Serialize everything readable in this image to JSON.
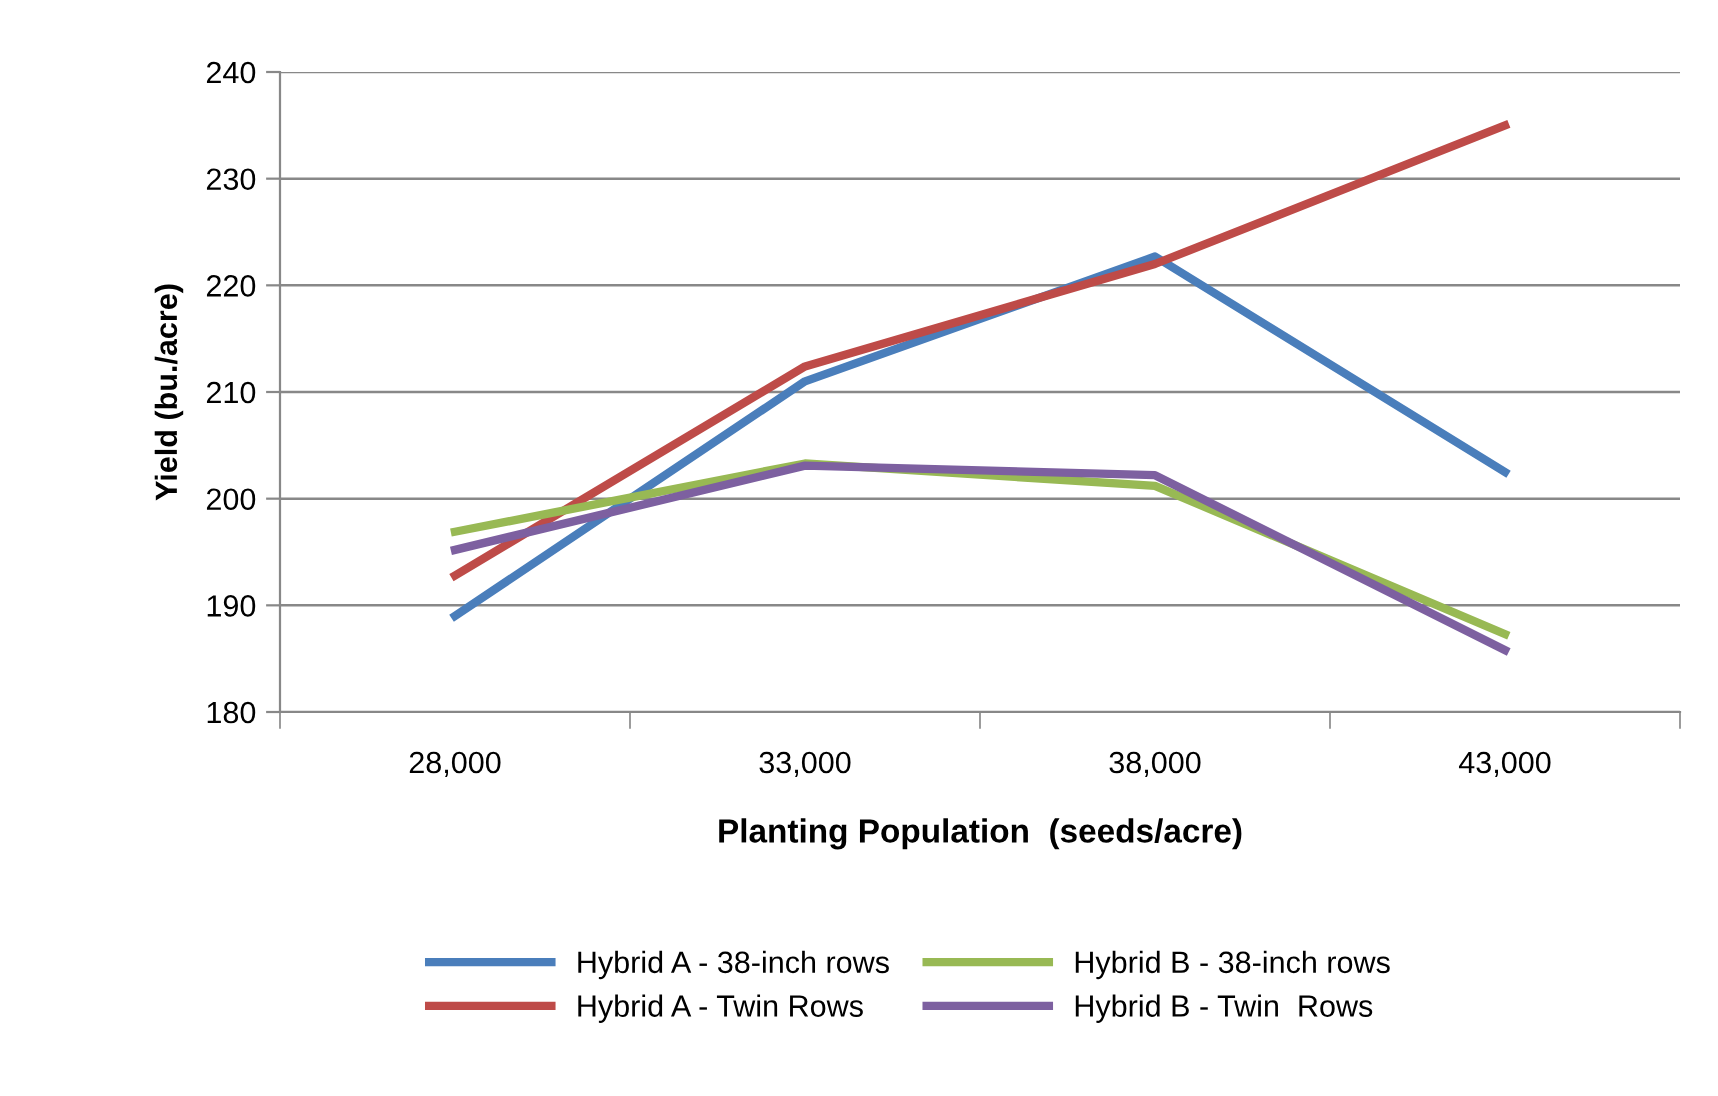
{
  "chart_data": {
    "type": "line",
    "xlabel": "Planting Population  (seeds/acre)",
    "ylabel": "Yield (bu./acre)",
    "categories": [
      "28,000",
      "33,000",
      "38,000",
      "43,000"
    ],
    "series": [
      {
        "name": "Hybrid A - 38-inch rows",
        "color": "#4a7ebb",
        "values": [
          189,
          211,
          222.7,
          202.5
        ]
      },
      {
        "name": "Hybrid A - Twin Rows",
        "color": "#be4b48",
        "values": [
          192.8,
          212.4,
          222,
          235
        ]
      },
      {
        "name": "Hybrid B - 38-inch rows",
        "color": "#98b954",
        "values": [
          196.9,
          203.3,
          201.2,
          187.3
        ]
      },
      {
        "name": "Hybrid B - Twin  Rows",
        "color": "#7d60a0",
        "values": [
          195.2,
          203.1,
          202.2,
          185.8
        ]
      }
    ],
    "ylim": [
      180,
      240
    ],
    "yticks": [
      180,
      190,
      200,
      210,
      220,
      230,
      240
    ],
    "grid": "y",
    "legend": "bottom",
    "marker": "none",
    "line_style": "solid"
  }
}
